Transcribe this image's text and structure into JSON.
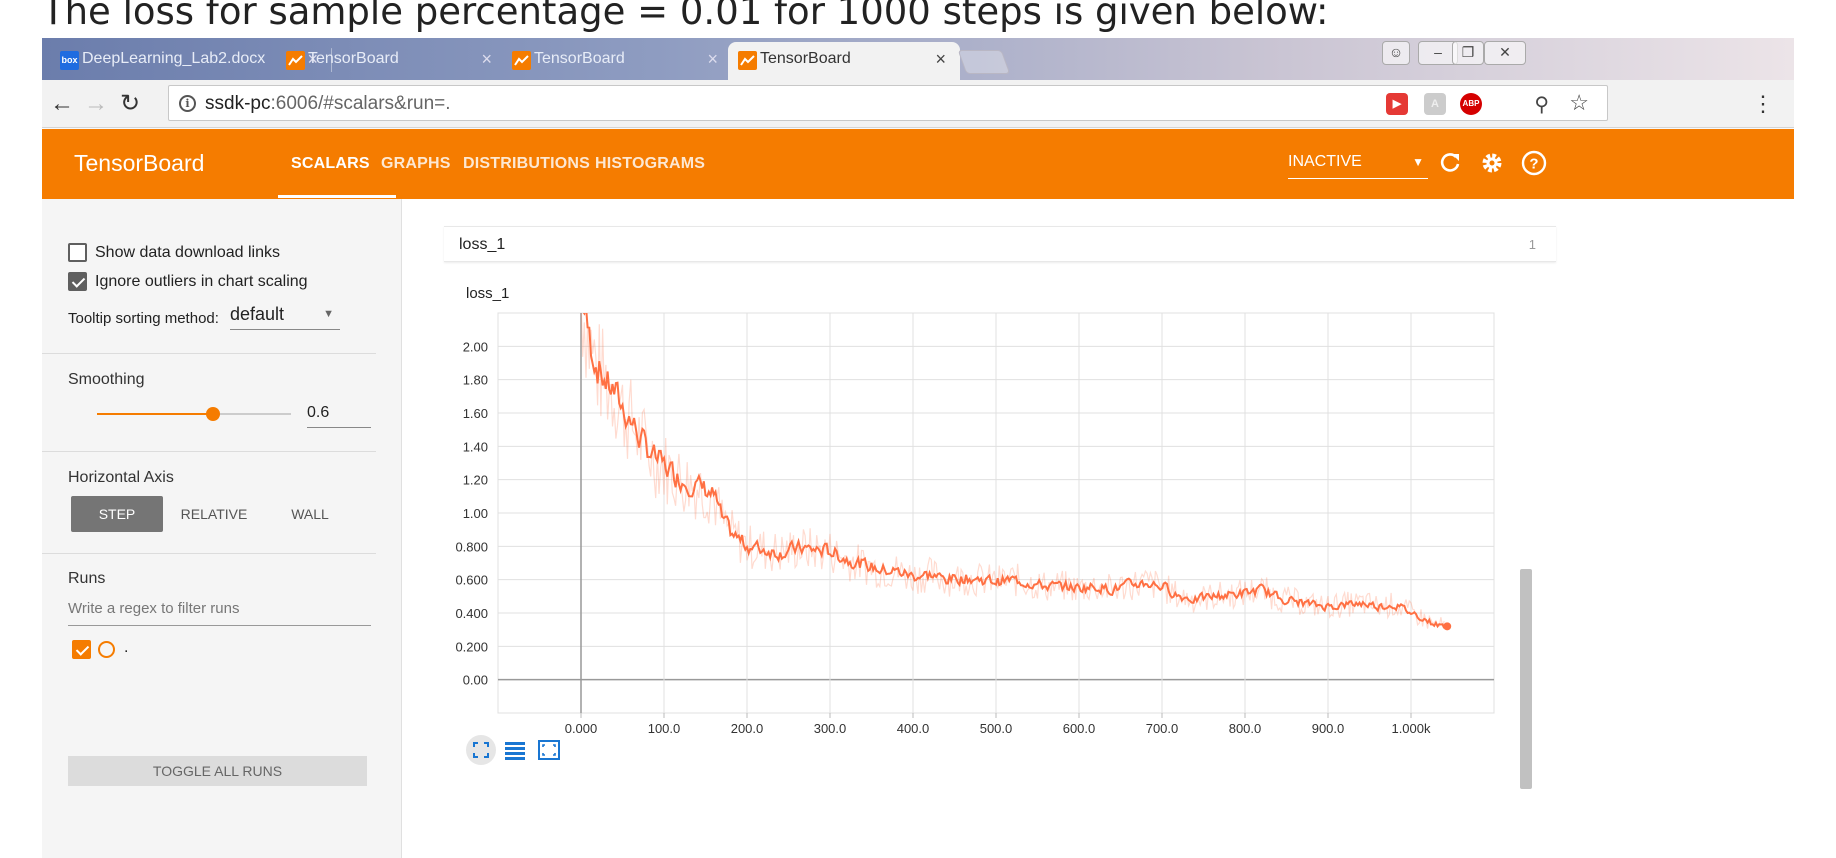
{
  "caption": "The loss for sample percentage = 0.01 for 1000 steps is given below:",
  "browser": {
    "tabs": [
      {
        "title": "DeepLearning_Lab2.docx",
        "icon": "box-icon",
        "active": false
      },
      {
        "title": "TensorBoard",
        "icon": "tensorboard-icon",
        "active": false
      },
      {
        "title": "TensorBoard",
        "icon": "tensorboard-icon",
        "active": false
      },
      {
        "title": "TensorBoard",
        "icon": "tensorboard-icon",
        "active": true
      }
    ],
    "address": {
      "host": "ssdk-pc",
      "path": ":6006/#scalars&run=."
    },
    "extensions": [
      "pdf-ext",
      "acrobat-ext",
      "abp-ext"
    ],
    "abp_label": "ABP",
    "box_label": "box"
  },
  "tensorboard": {
    "title": "TensorBoard",
    "nav": [
      "SCALARS",
      "GRAPHS",
      "DISTRIBUTIONS",
      "HISTOGRAMS"
    ],
    "active_nav": "SCALARS",
    "run_selector": "INACTIVE",
    "accent": "#f57c00"
  },
  "sidebar": {
    "show_download_links": "Show data download links",
    "ignore_outliers": "Ignore outliers in chart scaling",
    "tooltip_label": "Tooltip sorting method:",
    "tooltip_value": "default",
    "smoothing_label": "Smoothing",
    "smoothing_value": "0.6",
    "smoothing_fraction": 0.6,
    "horizontal_axis_label": "Horizontal Axis",
    "axis_options": [
      "STEP",
      "RELATIVE",
      "WALL"
    ],
    "axis_selected": "STEP",
    "runs_label": "Runs",
    "runs_filter_placeholder": "Write a regex to filter runs",
    "run_name": ".",
    "toggle_all_runs": "TOGGLE ALL RUNS"
  },
  "main": {
    "card_title": "loss_1",
    "card_count": "1",
    "chart_title": "loss_1"
  },
  "chart_data": {
    "type": "line",
    "title": "loss_1",
    "xlabel": "",
    "ylabel": "",
    "xlim": [
      -100,
      1100
    ],
    "ylim": [
      -0.2,
      2.2
    ],
    "x_ticks": [
      0,
      100,
      200,
      300,
      400,
      500,
      600,
      700,
      800,
      900,
      1000
    ],
    "x_tick_labels": [
      "0.000",
      "100.0",
      "200.0",
      "300.0",
      "400.0",
      "500.0",
      "600.0",
      "700.0",
      "800.0",
      "900.0",
      "1.000k"
    ],
    "y_ticks": [
      0,
      0.2,
      0.4,
      0.6,
      0.8,
      1.0,
      1.2,
      1.4,
      1.6,
      1.8,
      2.0
    ],
    "y_tick_labels": [
      "0.00",
      "0.200",
      "0.400",
      "0.600",
      "0.800",
      "1.00",
      "1.20",
      "1.40",
      "1.60",
      "1.80",
      "2.00"
    ],
    "grid": true,
    "series": [
      {
        "color": "#ff7043",
        "x": [
          0,
          10,
          20,
          30,
          40,
          50,
          60,
          70,
          80,
          90,
          100,
          110,
          120,
          130,
          140,
          150,
          160,
          170,
          180,
          190,
          200,
          220,
          240,
          260,
          280,
          300,
          320,
          340,
          360,
          380,
          400,
          420,
          440,
          460,
          480,
          500,
          520,
          540,
          560,
          580,
          600,
          620,
          640,
          660,
          680,
          700,
          720,
          740,
          760,
          780,
          800,
          820,
          840,
          860,
          880,
          900,
          920,
          940,
          960,
          980,
          1000,
          1010,
          1020,
          1030,
          1040
        ],
        "values": [
          2.3,
          2.02,
          1.86,
          1.78,
          1.72,
          1.62,
          1.55,
          1.45,
          1.38,
          1.32,
          1.28,
          1.24,
          1.2,
          1.18,
          1.16,
          1.14,
          1.1,
          0.95,
          0.88,
          0.84,
          0.8,
          0.78,
          0.76,
          0.79,
          0.78,
          0.77,
          0.72,
          0.69,
          0.66,
          0.65,
          0.62,
          0.63,
          0.6,
          0.61,
          0.6,
          0.59,
          0.6,
          0.58,
          0.56,
          0.56,
          0.55,
          0.56,
          0.54,
          0.57,
          0.58,
          0.56,
          0.5,
          0.48,
          0.5,
          0.51,
          0.52,
          0.54,
          0.49,
          0.47,
          0.45,
          0.44,
          0.45,
          0.46,
          0.44,
          0.45,
          0.4,
          0.38,
          0.35,
          0.33,
          0.32
        ]
      }
    ]
  }
}
